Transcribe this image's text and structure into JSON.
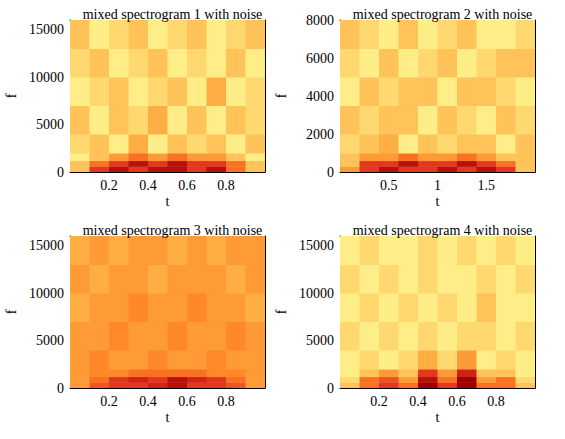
{
  "chart_data": [
    {
      "type": "heatmap",
      "title": "mixed spectrogram 1 with noise",
      "x_label": "t",
      "y_label": "f",
      "xlim": [
        0,
        1
      ],
      "xticks": [
        0.2,
        0.4,
        0.6,
        0.8
      ],
      "ylim": [
        0,
        16000
      ],
      "yticks": [
        0,
        5000,
        10000,
        15000
      ],
      "t_edges": [
        0,
        0.1,
        0.2,
        0.3,
        0.4,
        0.5,
        0.6,
        0.7,
        0.8,
        0.9,
        1
      ],
      "f_edges": [
        0,
        600,
        1200,
        2000,
        4000,
        7000,
        10000,
        13000,
        16000
      ],
      "cells": [
        [
          4,
          7,
          8,
          7,
          8,
          8,
          7,
          8,
          6,
          4
        ],
        [
          4,
          6,
          7,
          8,
          7,
          8,
          7,
          7,
          6,
          4
        ],
        [
          3,
          4,
          5,
          6,
          5,
          6,
          5,
          5,
          4,
          3
        ],
        [
          3.5,
          4,
          3,
          4.5,
          3,
          4,
          3.5,
          4,
          3,
          4
        ],
        [
          4,
          3,
          4,
          3.5,
          4.5,
          3,
          4,
          3,
          4,
          3.5
        ],
        [
          3,
          3.5,
          4,
          3,
          3.5,
          4,
          3,
          4.5,
          3,
          3.5
        ],
        [
          3.5,
          4,
          3,
          3.5,
          4,
          3,
          3.5,
          3,
          4,
          3
        ],
        [
          4,
          3,
          3.5,
          4,
          3,
          3.5,
          4,
          3,
          3.5,
          4
        ]
      ]
    },
    {
      "type": "heatmap",
      "title": "mixed spectrogram 2 with noise",
      "x_label": "t",
      "y_label": "f",
      "xlim": [
        0,
        2
      ],
      "xticks": [
        0.5,
        1,
        1.5
      ],
      "ylim": [
        0,
        8000
      ],
      "yticks": [
        0,
        2000,
        4000,
        6000,
        8000
      ],
      "t_edges": [
        0,
        0.2,
        0.4,
        0.6,
        0.8,
        1,
        1.2,
        1.4,
        1.6,
        1.8,
        2
      ],
      "f_edges": [
        0,
        300,
        600,
        1000,
        2000,
        3500,
        5000,
        6500,
        8000
      ],
      "cells": [
        [
          5,
          7,
          8,
          7,
          7,
          8,
          7,
          8,
          7,
          4
        ],
        [
          4,
          7,
          7,
          8,
          7,
          7,
          8,
          7,
          6,
          4
        ],
        [
          4,
          5,
          5,
          6,
          5,
          5,
          6,
          5,
          4,
          4
        ],
        [
          3.5,
          4,
          4.5,
          3,
          4,
          3.5,
          4,
          4,
          3,
          4
        ],
        [
          4,
          3.5,
          4,
          4,
          3,
          4,
          3.5,
          3,
          4,
          3.5
        ],
        [
          3,
          4,
          3.5,
          4,
          4,
          3,
          4,
          4,
          3.5,
          3
        ],
        [
          3.5,
          3,
          4,
          3,
          3.5,
          4,
          3,
          3.5,
          4,
          4
        ],
        [
          4,
          3.5,
          3,
          4,
          3,
          3.5,
          4,
          3,
          3,
          3.5
        ]
      ]
    },
    {
      "type": "heatmap",
      "title": "mixed spectrogram 3 with noise",
      "x_label": "t",
      "y_label": "f",
      "xlim": [
        0,
        1
      ],
      "xticks": [
        0.2,
        0.4,
        0.6,
        0.8
      ],
      "ylim": [
        0,
        16000
      ],
      "yticks": [
        0,
        5000,
        10000,
        15000
      ],
      "t_edges": [
        0,
        0.1,
        0.2,
        0.3,
        0.4,
        0.5,
        0.6,
        0.7,
        0.8,
        0.9,
        1
      ],
      "f_edges": [
        0,
        600,
        1200,
        2000,
        4000,
        7000,
        10000,
        13000,
        16000
      ],
      "cells": [
        [
          5,
          6.5,
          7,
          7,
          7.5,
          8,
          7,
          7,
          6.5,
          5
        ],
        [
          5,
          6,
          7,
          7.5,
          7,
          8,
          7.5,
          7,
          6,
          5
        ],
        [
          5,
          5.5,
          5.5,
          6,
          6,
          6,
          6,
          5.5,
          5.5,
          5
        ],
        [
          5,
          5.5,
          5,
          5,
          5.5,
          5,
          5,
          5.5,
          5,
          5
        ],
        [
          5,
          5,
          5.5,
          5,
          5,
          5.5,
          5,
          5,
          5.5,
          5
        ],
        [
          4.5,
          5,
          5,
          5.5,
          5,
          5,
          5.5,
          5,
          5,
          4.5
        ],
        [
          5,
          4.5,
          5,
          5,
          4.5,
          5,
          5,
          5,
          4.5,
          5
        ],
        [
          4.5,
          5,
          4.5,
          5,
          5,
          4.5,
          5,
          4.5,
          5,
          5
        ]
      ]
    },
    {
      "type": "heatmap",
      "title": "mixed spectrogram 4 with noise",
      "x_label": "t",
      "y_label": "f",
      "xlim": [
        0,
        1
      ],
      "xticks": [
        0.2,
        0.4,
        0.6,
        0.8
      ],
      "ylim": [
        0,
        16000
      ],
      "yticks": [
        0,
        5000,
        10000,
        15000
      ],
      "t_edges": [
        0,
        0.1,
        0.2,
        0.3,
        0.4,
        0.5,
        0.6,
        0.7,
        0.8,
        0.9,
        1
      ],
      "f_edges": [
        0,
        600,
        1200,
        2000,
        4000,
        7000,
        10000,
        13000,
        16000
      ],
      "cells": [
        [
          4,
          6,
          7,
          6,
          8.5,
          7,
          8.5,
          6,
          6,
          4
        ],
        [
          3.5,
          6,
          6.5,
          5,
          8,
          6,
          8.5,
          5,
          6,
          3.5
        ],
        [
          3,
          4,
          5,
          4,
          7,
          5,
          7.5,
          4,
          4,
          3
        ],
        [
          3,
          3.5,
          3,
          3.5,
          4.5,
          3.5,
          5,
          3,
          3.5,
          3
        ],
        [
          3.5,
          3,
          3.5,
          3,
          3.5,
          3,
          3.5,
          3.5,
          3,
          3.5
        ],
        [
          3,
          3.5,
          3,
          3.5,
          3,
          3.5,
          3,
          4,
          3,
          3
        ],
        [
          3.5,
          3,
          3.5,
          3,
          3.5,
          3,
          3,
          3.5,
          3,
          3.5
        ],
        [
          3,
          3.5,
          3,
          3,
          3.5,
          3,
          3.5,
          3,
          3.5,
          3
        ]
      ]
    }
  ]
}
